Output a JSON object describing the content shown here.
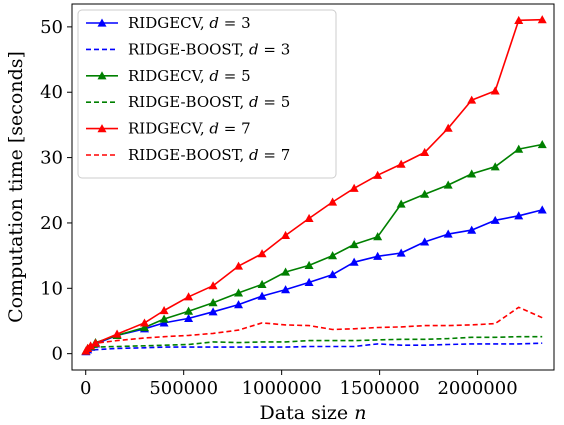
{
  "chart_data": {
    "type": "line",
    "xlabel": "Data size n",
    "ylabel": "Computation time [seconds]",
    "xlim": [
      -70000,
      2390000
    ],
    "ylim": [
      -2.5,
      53.5
    ],
    "xticks": [
      0,
      500000,
      1000000,
      1500000,
      2000000
    ],
    "xtick_labels": [
      "0",
      "500000",
      "1000000",
      "1500000",
      "2000000"
    ],
    "yticks": [
      0,
      10,
      20,
      30,
      40,
      50
    ],
    "ytick_labels": [
      "0",
      "10",
      "20",
      "30",
      "40",
      "50"
    ],
    "grid": false,
    "legend_position": "top-left",
    "series": [
      {
        "name": "RIDGECV, d = 3",
        "color": "#0000ff",
        "style": "solid",
        "marker": "triangle",
        "x": [
          1000,
          10000,
          25000,
          50000,
          160000,
          300000,
          400000,
          525000,
          650000,
          780000,
          900000,
          1020000,
          1140000,
          1260000,
          1370000,
          1490000,
          1610000,
          1730000,
          1850000,
          1970000,
          2090000,
          2210000,
          2330000
        ],
        "y": [
          0.3,
          0.6,
          1.0,
          1.5,
          2.8,
          3.8,
          4.7,
          5.4,
          6.4,
          7.5,
          8.8,
          9.8,
          10.9,
          12.1,
          14.0,
          14.9,
          15.4,
          17.1,
          18.3,
          18.9,
          20.4,
          21.1,
          22.0
        ]
      },
      {
        "name": "RIDGE-BOOST, d = 3",
        "color": "#0000ff",
        "style": "dashed",
        "marker": "none",
        "x": [
          1000,
          10000,
          25000,
          50000,
          160000,
          300000,
          400000,
          525000,
          650000,
          780000,
          900000,
          1020000,
          1140000,
          1260000,
          1370000,
          1490000,
          1610000,
          1730000,
          1850000,
          1970000,
          2090000,
          2210000,
          2330000
        ],
        "y": [
          0.2,
          0.3,
          0.5,
          0.6,
          0.8,
          0.9,
          1.0,
          1.0,
          1.0,
          1.0,
          1.0,
          1.0,
          1.1,
          1.1,
          1.1,
          1.5,
          1.3,
          1.3,
          1.4,
          1.5,
          1.5,
          1.5,
          1.6
        ]
      },
      {
        "name": "RIDGECV, d = 5",
        "color": "#008000",
        "style": "solid",
        "marker": "triangle",
        "x": [
          1000,
          10000,
          25000,
          50000,
          160000,
          300000,
          400000,
          525000,
          650000,
          780000,
          900000,
          1020000,
          1140000,
          1260000,
          1370000,
          1490000,
          1610000,
          1730000,
          1850000,
          1970000,
          2090000,
          2210000,
          2330000
        ],
        "y": [
          0.4,
          0.8,
          1.1,
          1.7,
          2.8,
          4.0,
          5.3,
          6.5,
          7.8,
          9.3,
          10.6,
          12.5,
          13.5,
          15.0,
          16.7,
          17.9,
          22.9,
          24.4,
          25.8,
          27.5,
          28.6,
          31.3,
          32.0
        ]
      },
      {
        "name": "RIDGE-BOOST, d = 5",
        "color": "#008000",
        "style": "dashed",
        "marker": "none",
        "x": [
          1000,
          10000,
          25000,
          50000,
          160000,
          300000,
          400000,
          525000,
          650000,
          780000,
          900000,
          1020000,
          1140000,
          1260000,
          1370000,
          1490000,
          1610000,
          1730000,
          1850000,
          1970000,
          2090000,
          2210000,
          2330000
        ],
        "y": [
          0.3,
          0.5,
          0.8,
          1.0,
          1.1,
          1.2,
          1.3,
          1.4,
          1.8,
          1.7,
          1.8,
          1.8,
          2.0,
          2.0,
          2.0,
          2.1,
          2.2,
          2.2,
          2.3,
          2.5,
          2.5,
          2.6,
          2.6
        ]
      },
      {
        "name": "RIDGECV, d = 7",
        "color": "#ff0000",
        "style": "solid",
        "marker": "triangle",
        "x": [
          1000,
          10000,
          25000,
          50000,
          160000,
          300000,
          400000,
          525000,
          650000,
          780000,
          900000,
          1020000,
          1140000,
          1260000,
          1370000,
          1490000,
          1610000,
          1730000,
          1850000,
          1970000,
          2090000,
          2210000,
          2330000
        ],
        "y": [
          0.4,
          0.8,
          1.2,
          1.6,
          3.0,
          4.7,
          6.6,
          8.7,
          10.4,
          13.4,
          15.3,
          18.1,
          20.7,
          23.2,
          25.3,
          27.3,
          29.0,
          30.8,
          34.5,
          38.8,
          40.2,
          51.0,
          51.1
        ]
      },
      {
        "name": "RIDGE-BOOST, d = 7",
        "color": "#ff0000",
        "style": "dashed",
        "marker": "none",
        "x": [
          1000,
          10000,
          25000,
          50000,
          160000,
          300000,
          400000,
          525000,
          650000,
          780000,
          900000,
          1020000,
          1140000,
          1260000,
          1370000,
          1490000,
          1610000,
          1730000,
          1850000,
          1970000,
          2090000,
          2210000,
          2330000
        ],
        "y": [
          0.4,
          0.7,
          1.2,
          1.6,
          2.0,
          2.4,
          2.6,
          2.8,
          3.1,
          3.6,
          4.7,
          4.4,
          4.3,
          3.7,
          3.8,
          4.0,
          4.1,
          4.3,
          4.3,
          4.4,
          4.6,
          7.1,
          5.5
        ]
      }
    ],
    "legend": [
      {
        "pre": "RIDGECV, ",
        "var": "d",
        "post": " = 3"
      },
      {
        "pre": "RIDGE-BOOST, ",
        "var": "d",
        "post": " = 3"
      },
      {
        "pre": "RIDGECV, ",
        "var": "d",
        "post": " = 5"
      },
      {
        "pre": "RIDGE-BOOST, ",
        "var": "d",
        "post": " = 5"
      },
      {
        "pre": "RIDGECV, ",
        "var": "d",
        "post": " = 7"
      },
      {
        "pre": "RIDGE-BOOST, ",
        "var": "d",
        "post": " = 7"
      }
    ],
    "xlabel_parts": {
      "pre": "Data size ",
      "var": "n"
    }
  }
}
